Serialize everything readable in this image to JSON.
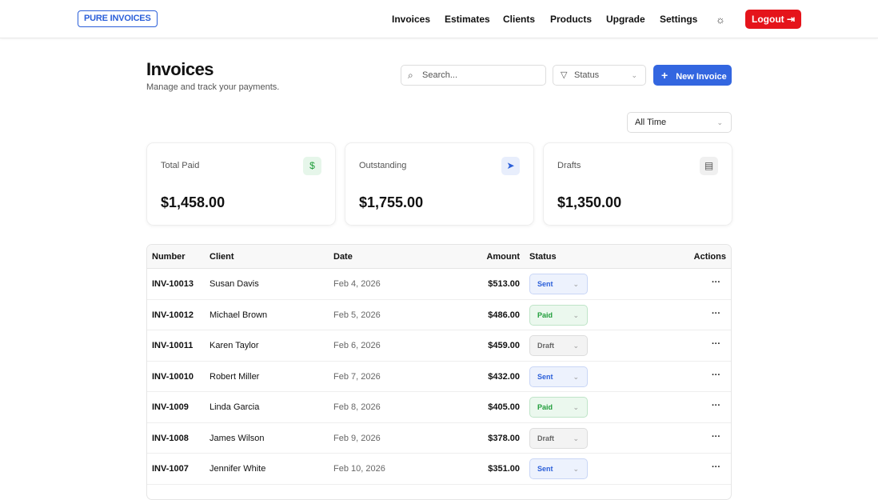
{
  "nav": {
    "logo": "PURE INVOICES",
    "links": [
      "Invoices",
      "Estimates",
      "Clients",
      "Products",
      "Upgrade",
      "Settings"
    ],
    "theme_icon": "sun-icon",
    "logout": "Logout"
  },
  "header": {
    "title": "Invoices",
    "subtitle": "Manage and track your payments.",
    "search_placeholder": "Search...",
    "status_filter": "Status",
    "new_invoice": "New Invoice",
    "period": "All Time"
  },
  "stats": [
    {
      "label": "Total Paid",
      "value": "$1,458.00",
      "icon": "dollar-icon",
      "color": "#1f9d3a",
      "bg": "#e6f6ea"
    },
    {
      "label": "Outstanding",
      "value": "$1,755.00",
      "icon": "send-icon",
      "color": "#2b5fd9",
      "bg": "#e8eefc"
    },
    {
      "label": "Drafts",
      "value": "$1,350.00",
      "icon": "file-icon",
      "color": "#555",
      "bg": "#f0f0f0"
    }
  ],
  "table": {
    "headers": [
      "Number",
      "Client",
      "Date",
      "Amount",
      "Status",
      "Actions"
    ],
    "rows": [
      {
        "number": "INV-10013",
        "client": "Susan Davis",
        "date": "Feb 4, 2026",
        "amount": "$513.00",
        "status": "Sent"
      },
      {
        "number": "INV-10012",
        "client": "Michael Brown",
        "date": "Feb 5, 2026",
        "amount": "$486.00",
        "status": "Paid"
      },
      {
        "number": "INV-10011",
        "client": "Karen Taylor",
        "date": "Feb 6, 2026",
        "amount": "$459.00",
        "status": "Draft"
      },
      {
        "number": "INV-10010",
        "client": "Robert Miller",
        "date": "Feb 7, 2026",
        "amount": "$432.00",
        "status": "Sent"
      },
      {
        "number": "INV-1009",
        "client": "Linda Garcia",
        "date": "Feb 8, 2026",
        "amount": "$405.00",
        "status": "Paid"
      },
      {
        "number": "INV-1008",
        "client": "James Wilson",
        "date": "Feb 9, 2026",
        "amount": "$378.00",
        "status": "Draft"
      },
      {
        "number": "INV-1007",
        "client": "Jennifer White",
        "date": "Feb 10, 2026",
        "amount": "$351.00",
        "status": "Sent"
      }
    ]
  },
  "status_colors": {
    "Sent": {
      "fg": "#2b5fd9",
      "bg": "#edf2fd",
      "border": "#c9d6f6"
    },
    "Paid": {
      "fg": "#1f9d3a",
      "bg": "#ebf8ee",
      "border": "#bfe5c8"
    },
    "Draft": {
      "fg": "#666",
      "bg": "#f3f3f3",
      "border": "#ddd"
    }
  }
}
